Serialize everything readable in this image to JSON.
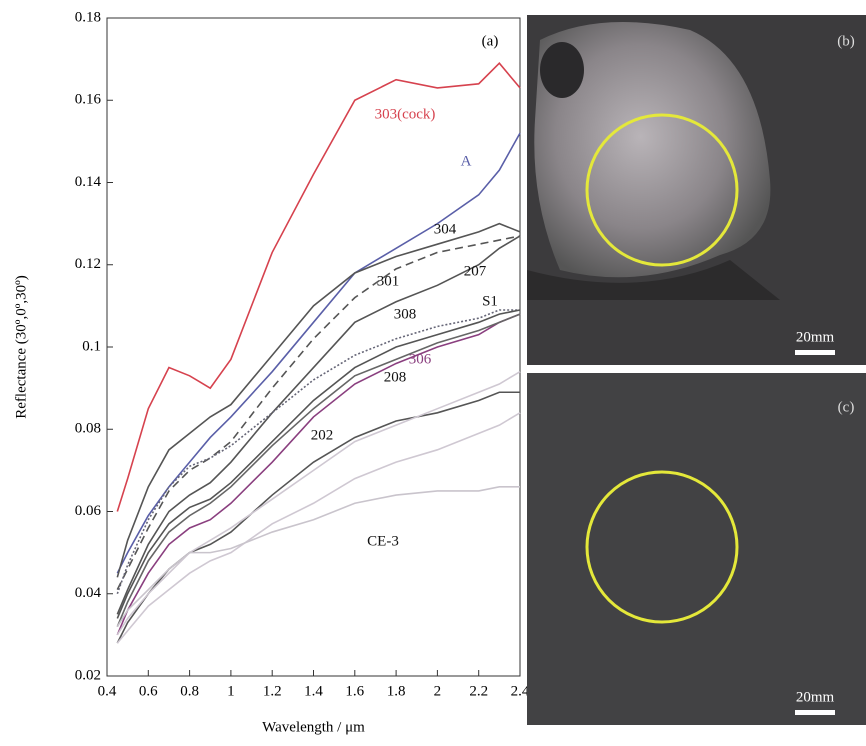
{
  "chart_data": {
    "type": "line",
    "panel_label": "(a)",
    "x_label": "Wavelength / μm",
    "y_label": "Reflectance (30º,0º,30º)",
    "x": [
      0.45,
      0.5,
      0.6,
      0.7,
      0.8,
      0.9,
      1.0,
      1.2,
      1.4,
      1.6,
      1.8,
      2.0,
      2.2,
      2.3,
      2.4
    ],
    "xlim": [
      0.4,
      2.4
    ],
    "xticks": [
      0.4,
      0.6,
      0.8,
      1.0,
      1.2,
      1.4,
      1.6,
      1.8,
      2.0,
      2.2,
      2.4
    ],
    "ylim": [
      0.02,
      0.18
    ],
    "yticks": [
      0.02,
      0.04,
      0.06,
      0.08,
      0.1,
      0.12,
      0.14,
      0.16,
      0.18
    ],
    "series": [
      {
        "name": "303(cock)",
        "color": "#d6424e",
        "values": [
          0.06,
          0.068,
          0.085,
          0.095,
          0.093,
          0.09,
          0.097,
          0.123,
          0.142,
          0.16,
          0.165,
          0.163,
          0.164,
          0.169,
          0.163
        ]
      },
      {
        "name": "A",
        "color": "#5a5fa8",
        "values": [
          0.045,
          0.05,
          0.059,
          0.066,
          0.072,
          0.078,
          0.083,
          0.094,
          0.106,
          0.118,
          0.124,
          0.13,
          0.137,
          0.143,
          0.152
        ]
      },
      {
        "name": "304",
        "color": "#555555",
        "values": [
          0.044,
          0.053,
          0.066,
          0.075,
          0.079,
          0.083,
          0.086,
          0.098,
          0.11,
          0.118,
          0.122,
          0.125,
          0.128,
          0.13,
          0.128
        ]
      },
      {
        "name": "301",
        "color": "#555555",
        "dash": "8,5",
        "values": [
          0.041,
          0.046,
          0.056,
          0.065,
          0.07,
          0.073,
          0.077,
          0.09,
          0.102,
          0.112,
          0.119,
          0.123,
          0.125,
          0.126,
          0.127
        ]
      },
      {
        "name": "207",
        "color": "#555555",
        "values": [
          0.035,
          0.041,
          0.052,
          0.06,
          0.064,
          0.067,
          0.072,
          0.084,
          0.095,
          0.106,
          0.111,
          0.115,
          0.12,
          0.124,
          0.127
        ]
      },
      {
        "name": "308",
        "color": "#666677",
        "dash": "2,2",
        "values": [
          0.04,
          0.047,
          0.058,
          0.066,
          0.071,
          0.073,
          0.076,
          0.084,
          0.092,
          0.098,
          0.102,
          0.105,
          0.107,
          0.109,
          0.109
        ]
      },
      {
        "name": "S1",
        "color": "#555555",
        "values": [
          0.034,
          0.04,
          0.05,
          0.057,
          0.061,
          0.063,
          0.067,
          0.077,
          0.087,
          0.095,
          0.1,
          0.103,
          0.106,
          0.108,
          0.109
        ]
      },
      {
        "name": "306",
        "color": "#8a3f7f",
        "values": [
          0.03,
          0.036,
          0.045,
          0.052,
          0.056,
          0.058,
          0.062,
          0.072,
          0.083,
          0.091,
          0.096,
          0.1,
          0.103,
          0.106,
          0.108
        ]
      },
      {
        "name": "208",
        "color": "#666666",
        "values": [
          0.032,
          0.038,
          0.048,
          0.055,
          0.059,
          0.062,
          0.066,
          0.076,
          0.085,
          0.093,
          0.097,
          0.101,
          0.104,
          0.106,
          0.108
        ]
      },
      {
        "name": "202",
        "color": "#555555",
        "values": [
          0.028,
          0.033,
          0.04,
          0.046,
          0.05,
          0.052,
          0.055,
          0.064,
          0.072,
          0.078,
          0.082,
          0.084,
          0.087,
          0.089,
          0.089
        ]
      },
      {
        "color": "#cfc8d2",
        "values": [
          0.03,
          0.034,
          0.04,
          0.045,
          0.05,
          0.053,
          0.056,
          0.063,
          0.07,
          0.077,
          0.081,
          0.085,
          0.089,
          0.091,
          0.094
        ]
      },
      {
        "color": "#cfc8d2",
        "values": [
          0.028,
          0.031,
          0.037,
          0.041,
          0.045,
          0.048,
          0.05,
          0.057,
          0.062,
          0.068,
          0.072,
          0.075,
          0.079,
          0.081,
          0.084
        ]
      },
      {
        "name": "CE-3",
        "color": "#c9c4cc",
        "values": [
          0.032,
          0.036,
          0.041,
          0.046,
          0.05,
          0.05,
          0.051,
          0.055,
          0.058,
          0.062,
          0.064,
          0.065,
          0.065,
          0.066,
          0.066
        ]
      }
    ]
  },
  "photos": [
    {
      "label": "(b)",
      "scale": "20mm"
    },
    {
      "label": "(c)",
      "scale": "20mm"
    }
  ]
}
